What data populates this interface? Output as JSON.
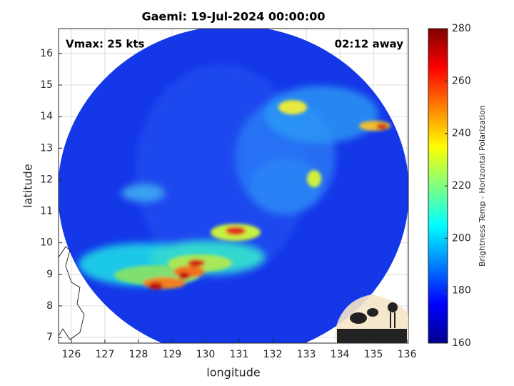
{
  "chart_data": {
    "type": "image",
    "title": "Gaemi: 19-Jul-2024 00:00:00",
    "annotations": [
      "Vmax: 25 kts",
      "02:12 away"
    ],
    "xlabel": "longitude",
    "ylabel": "latitude",
    "xlim": [
      125.62,
      136.04
    ],
    "xticks": [
      126,
      127,
      128,
      129,
      130,
      131,
      132,
      133,
      134,
      135,
      136
    ],
    "ylim": [
      6.82,
      16.79
    ],
    "yticks": [
      7,
      8,
      9,
      10,
      11,
      12,
      13,
      14,
      15,
      16
    ],
    "grid": true,
    "colorbar": {
      "label": "Brightness Temp - Horizontal Polarization",
      "colormap": "jet",
      "clim": [
        160,
        280
      ],
      "ticks": [
        160,
        180,
        200,
        220,
        240,
        260,
        280
      ]
    },
    "logo": "CIMSS"
  }
}
